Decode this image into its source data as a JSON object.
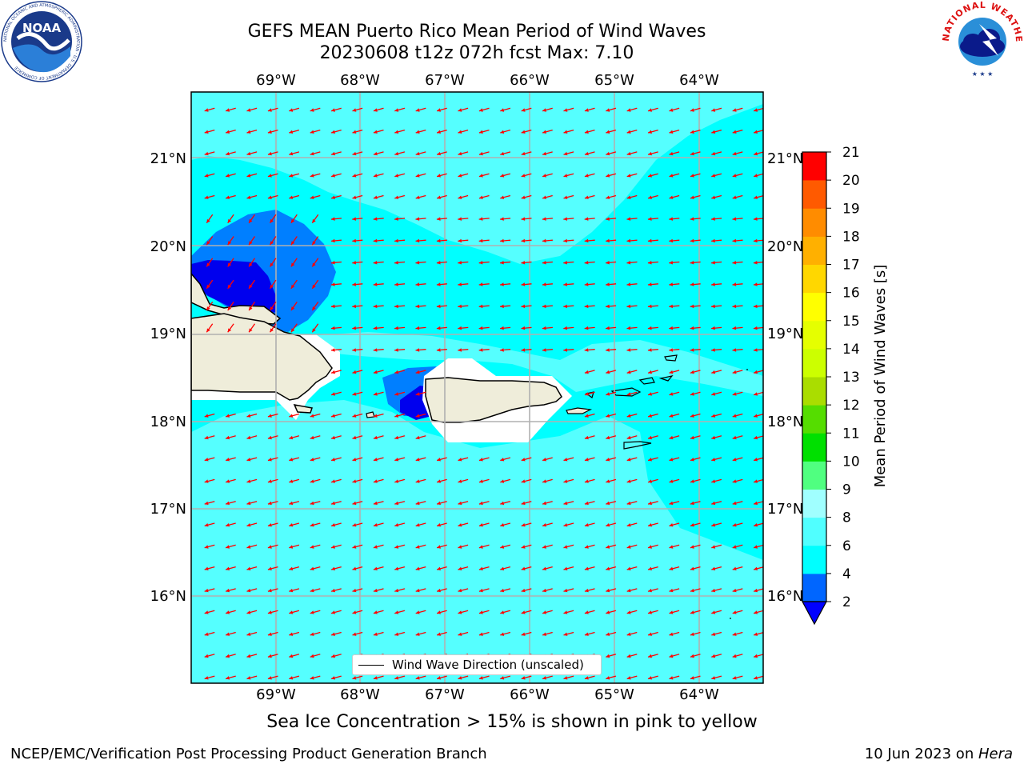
{
  "header": {
    "title_line1": "GEFS MEAN Puerto Rico Mean Period of Wind Waves",
    "title_line2": "20230608 t12z 072h fcst   Max: 7.10"
  },
  "logos": {
    "noaa": "NOAA",
    "noaa_ring": "NATIONAL OCEANIC AND ATMOSPHERIC ADMINISTRATION · U.S. DEPARTMENT OF COMMERCE",
    "nws_ring": "NATIONAL WEATHER SERVICE"
  },
  "map": {
    "lon_labels": [
      "69°W",
      "68°W",
      "67°W",
      "66°W",
      "65°W",
      "64°W"
    ],
    "lat_labels": [
      "21°N",
      "20°N",
      "19°N",
      "18°N",
      "17°N",
      "16°N"
    ],
    "colors": {
      "ocean": "#00ffff",
      "light": "#55ffff",
      "mid_blue": "#007fff",
      "dark_blue": "#0000ee",
      "land": "#efedda",
      "arrow": "#ff0000",
      "grid": "#b0b0b0"
    },
    "legend_label": "Wind Wave Direction (unscaled)"
  },
  "colorbar": {
    "label": "Mean Period of Wind Waves [s]",
    "ticks": [
      "2",
      "4",
      "6",
      "8",
      "9",
      "10",
      "11",
      "12",
      "13",
      "14",
      "15",
      "16",
      "17",
      "18",
      "19",
      "20",
      "21"
    ],
    "colors": [
      "#0066ff",
      "#00ffff",
      "#50ffff",
      "#a0ffff",
      "#50ff80",
      "#00e000",
      "#55dd00",
      "#aadd00",
      "#ccff00",
      "#e5ff00",
      "#ffff00",
      "#ffd700",
      "#ffb000",
      "#ff8c00",
      "#ff5a00",
      "#ff2800"
    ],
    "top_color": "#ff0000",
    "extend_color": "#0000ff"
  },
  "subtitle": "Sea Ice Concentration > 15% is shown in pink to yellow",
  "footer": {
    "left": "NCEP/EMC/Verification Post Processing Product Generation Branch",
    "date": "10 Jun 2023 on ",
    "machine": "Hera"
  }
}
